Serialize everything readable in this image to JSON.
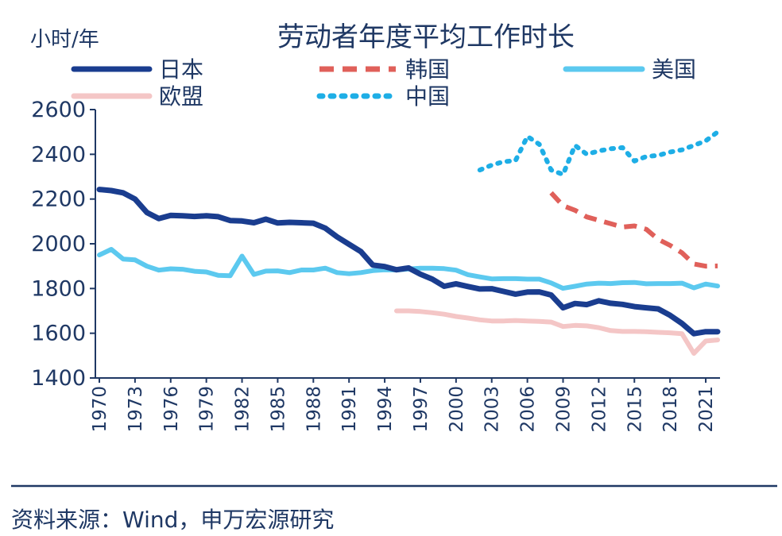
{
  "chart_data": {
    "type": "line",
    "title": "劳动者年度平均工作时长",
    "ylabel": "小时/年",
    "ylim": [
      1400,
      2600
    ],
    "yticks": [
      2600,
      2400,
      2200,
      2000,
      1800,
      1600,
      1400
    ],
    "xlim": [
      1970,
      2022
    ],
    "xticks": [
      "1970",
      "1973",
      "1976",
      "1979",
      "1982",
      "1985",
      "1988",
      "1991",
      "1994",
      "1997",
      "2000",
      "2003",
      "2006",
      "2009",
      "2012",
      "2015",
      "2018",
      "2021"
    ],
    "grid": false,
    "legend_position": "top",
    "series": [
      {
        "name": "日本",
        "color": "#1a3d8f",
        "style": "solid",
        "x": [
          1970,
          1971,
          1972,
          1973,
          1974,
          1975,
          1976,
          1977,
          1978,
          1979,
          1980,
          1981,
          1982,
          1983,
          1984,
          1985,
          1986,
          1987,
          1988,
          1989,
          1990,
          1991,
          1992,
          1993,
          1994,
          1995,
          1996,
          1997,
          1998,
          1999,
          2000,
          2001,
          2002,
          2003,
          2004,
          2005,
          2006,
          2007,
          2008,
          2009,
          2010,
          2011,
          2012,
          2013,
          2014,
          2015,
          2016,
          2017,
          2018,
          2019,
          2020,
          2021,
          2022
        ],
        "y": [
          2243,
          2238,
          2228,
          2200,
          2140,
          2113,
          2127,
          2125,
          2122,
          2125,
          2121,
          2104,
          2102,
          2094,
          2110,
          2093,
          2096,
          2094,
          2092,
          2070,
          2031,
          1998,
          1965,
          1905,
          1898,
          1884,
          1892,
          1864,
          1842,
          1810,
          1821,
          1809,
          1798,
          1799,
          1787,
          1775,
          1784,
          1785,
          1771,
          1714,
          1733,
          1728,
          1745,
          1734,
          1729,
          1719,
          1714,
          1709,
          1680,
          1644,
          1598,
          1607,
          1607
        ]
      },
      {
        "name": "韩国",
        "color": "#e0605a",
        "style": "dashed",
        "x": [
          2008,
          2009,
          2010,
          2011,
          2012,
          2013,
          2014,
          2015,
          2016,
          2017,
          2018,
          2019,
          2020,
          2021,
          2022
        ],
        "y": [
          2228,
          2170,
          2150,
          2120,
          2105,
          2090,
          2075,
          2080,
          2065,
          2020,
          1993,
          1960,
          1910,
          1900,
          1901
        ]
      },
      {
        "name": "美国",
        "color": "#5cc9ef",
        "style": "solid",
        "x": [
          1970,
          1971,
          1972,
          1973,
          1974,
          1975,
          1976,
          1977,
          1978,
          1979,
          1980,
          1981,
          1982,
          1983,
          1984,
          1985,
          1986,
          1987,
          1988,
          1989,
          1990,
          1991,
          1992,
          1993,
          1994,
          1995,
          1996,
          1997,
          1998,
          1999,
          2000,
          2001,
          2002,
          2003,
          2004,
          2005,
          2006,
          2007,
          2008,
          2009,
          2010,
          2011,
          2012,
          2013,
          2014,
          2015,
          2016,
          2017,
          2018,
          2019,
          2020,
          2021,
          2022
        ],
        "y": [
          1950,
          1975,
          1932,
          1928,
          1900,
          1882,
          1888,
          1886,
          1877,
          1874,
          1859,
          1857,
          1945,
          1863,
          1878,
          1879,
          1871,
          1883,
          1883,
          1891,
          1871,
          1866,
          1871,
          1880,
          1884,
          1883,
          1887,
          1891,
          1891,
          1889,
          1882,
          1862,
          1852,
          1843,
          1844,
          1844,
          1842,
          1842,
          1825,
          1801,
          1810,
          1820,
          1824,
          1822,
          1826,
          1827,
          1821,
          1822,
          1822,
          1824,
          1803,
          1820,
          1811
        ]
      },
      {
        "name": "欧盟",
        "color": "#f4c6c6",
        "style": "solid",
        "x": [
          1995,
          1996,
          1997,
          1998,
          1999,
          2000,
          2001,
          2002,
          2003,
          2004,
          2005,
          2006,
          2007,
          2008,
          2009,
          2010,
          2011,
          2012,
          2013,
          2014,
          2015,
          2016,
          2017,
          2018,
          2019,
          2020,
          2021,
          2022
        ],
        "y": [
          1700,
          1700,
          1697,
          1692,
          1685,
          1675,
          1668,
          1660,
          1655,
          1655,
          1657,
          1655,
          1653,
          1650,
          1630,
          1635,
          1633,
          1625,
          1612,
          1608,
          1608,
          1607,
          1604,
          1602,
          1598,
          1510,
          1565,
          1570
        ]
      },
      {
        "name": "中国",
        "color": "#1eaee6",
        "style": "dotted",
        "x": [
          2002,
          2003,
          2004,
          2005,
          2006,
          2007,
          2008,
          2009,
          2010,
          2011,
          2012,
          2013,
          2014,
          2015,
          2016,
          2017,
          2018,
          2019,
          2020,
          2021,
          2022
        ],
        "y": [
          2330,
          2352,
          2367,
          2372,
          2480,
          2445,
          2330,
          2310,
          2440,
          2400,
          2415,
          2425,
          2430,
          2370,
          2390,
          2395,
          2410,
          2420,
          2440,
          2460,
          2500
        ]
      }
    ]
  },
  "source": "资料来源：Wind，申万宏源研究"
}
